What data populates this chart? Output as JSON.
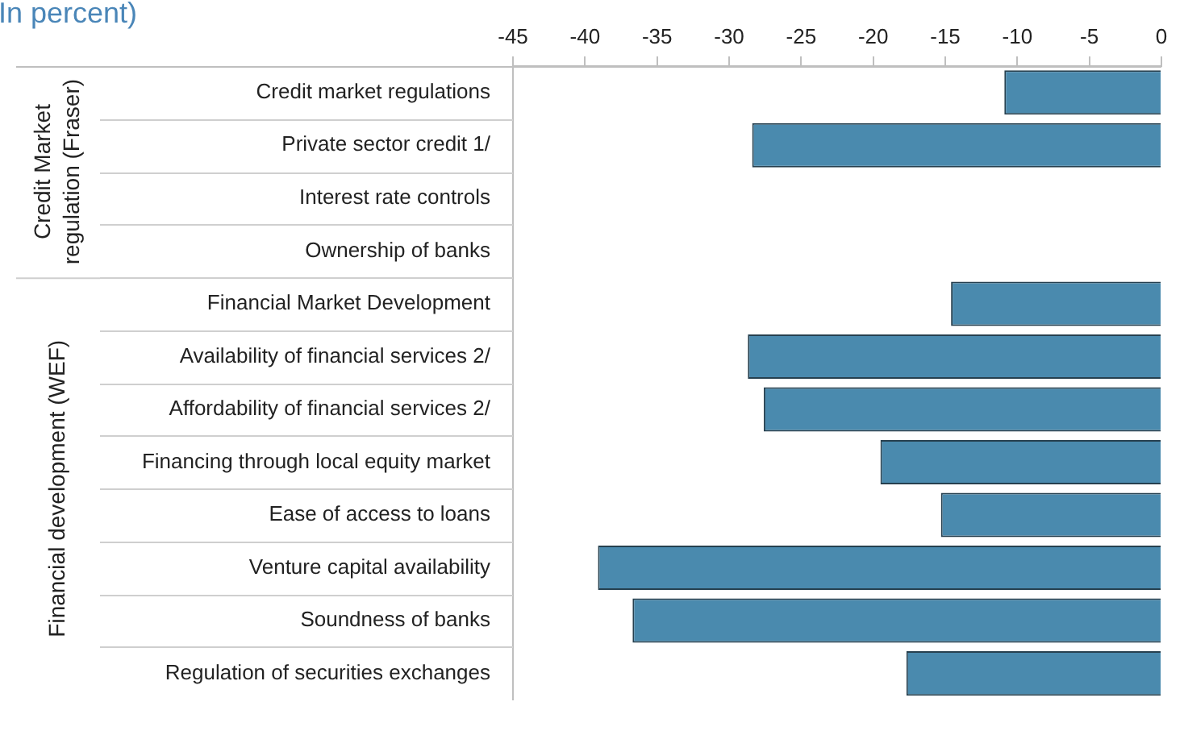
{
  "chart_data": {
    "type": "bar",
    "orientation": "horizontal",
    "title": "In percent)",
    "categories": [
      "Credit market regulations",
      "Private sector credit 1/",
      "Interest rate controls",
      "Ownership of banks",
      "Financial Market Development",
      "Availability of financial services 2/",
      "Affordability of financial services 2/",
      "Financing through local equity market",
      "Ease of access to loans",
      "Venture capital availability",
      "Soundness of banks",
      "Regulation of securities exchanges"
    ],
    "values": [
      -10.9,
      -28.4,
      null,
      null,
      -14.6,
      -28.7,
      -27.6,
      -19.5,
      -15.3,
      -39.1,
      -36.7,
      -17.7
    ],
    "color": "#4a8aae",
    "xlim": [
      -45,
      0
    ],
    "xticks": [
      -45,
      -40,
      -35,
      -30,
      -25,
      -20,
      -15,
      -10,
      -5,
      0
    ],
    "annotations": [
      "Credit Market regulation (Fraser)",
      "Financial development (WEF)"
    ],
    "grid": false,
    "legend": false
  }
}
